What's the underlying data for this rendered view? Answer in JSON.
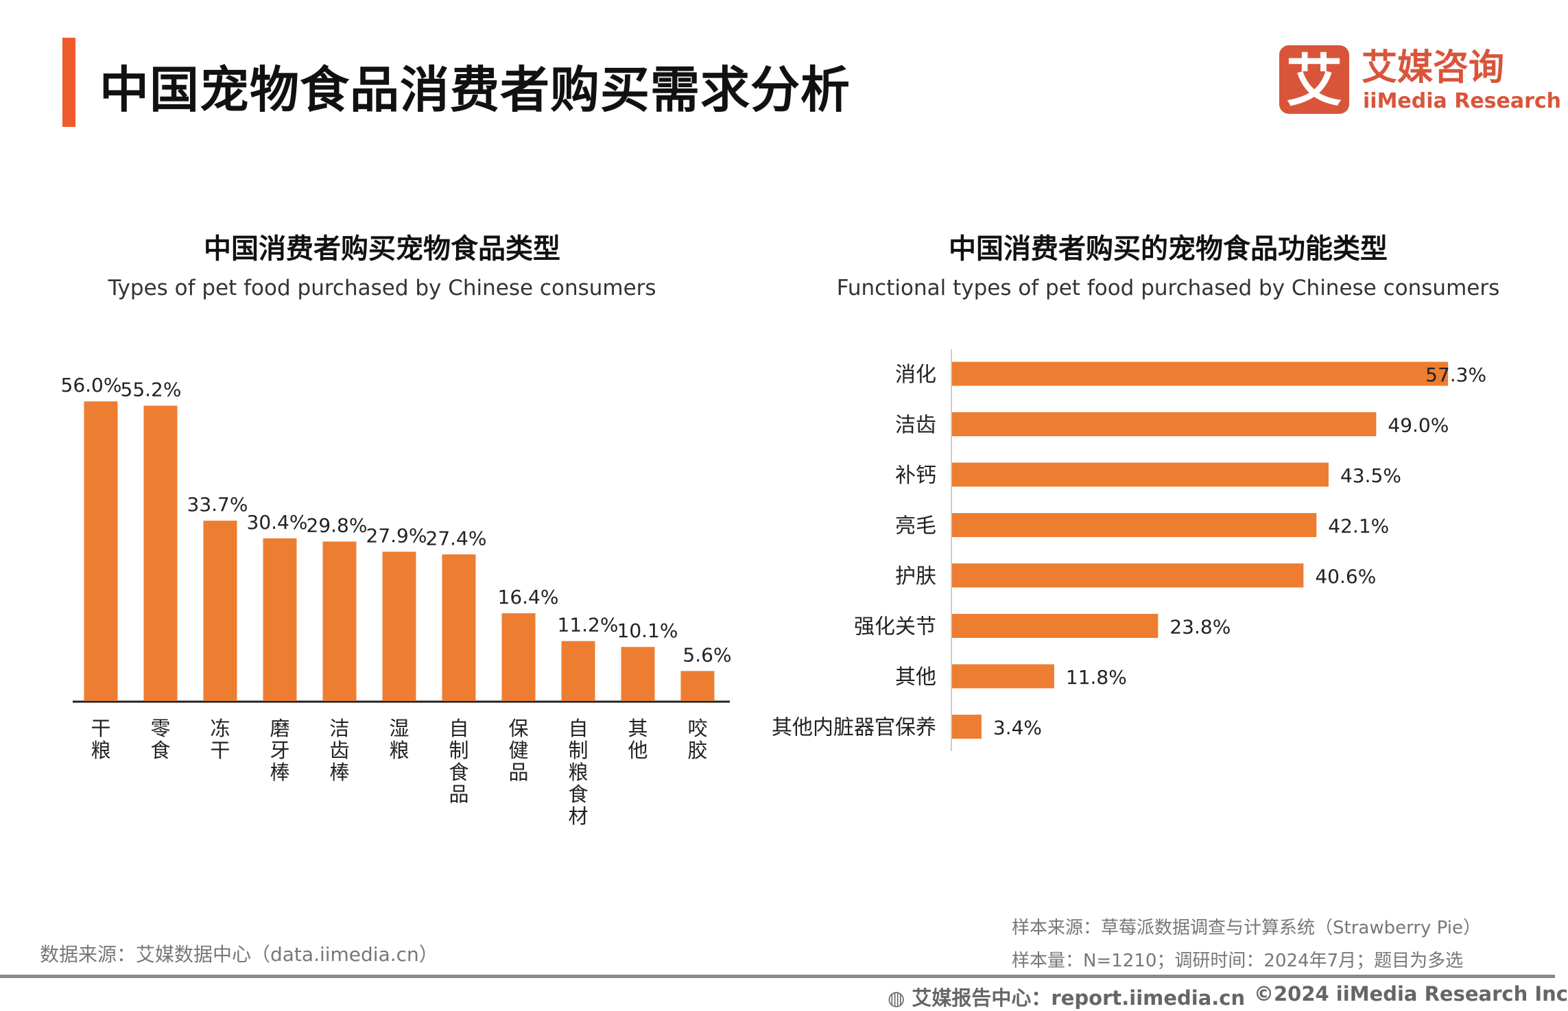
{
  "header": {
    "title": "中国宠物食品消费者购买需求分析",
    "accent_color": "#ee5a2c",
    "logo": {
      "mark": "艾",
      "cn": "艾媒咨询",
      "en": "iiMedia Research",
      "color": "#d9553a"
    }
  },
  "chart_data": [
    {
      "type": "bar",
      "orientation": "vertical",
      "title": "中国消费者购买宠物食品类型",
      "subtitle": "Types of pet food purchased by Chinese consumers",
      "categories": [
        "干粮",
        "零食",
        "冻干",
        "磨牙棒",
        "洁齿棒",
        "湿粮",
        "自制食品",
        "保健品",
        "自制粮食材",
        "其他",
        "咬胶"
      ],
      "values": [
        56.0,
        55.2,
        33.7,
        30.4,
        29.8,
        27.9,
        27.4,
        16.4,
        11.2,
        10.1,
        5.6
      ],
      "labels": [
        "56.0%",
        "55.2%",
        "33.7%",
        "30.4%",
        "29.8%",
        "27.9%",
        "27.4%",
        "16.4%",
        "11.2%",
        "10.1%",
        "5.6%"
      ],
      "unit": "%",
      "color": "#ed7d31",
      "grid": false
    },
    {
      "type": "bar",
      "orientation": "horizontal",
      "title": "中国消费者购买的宠物食品功能类型",
      "subtitle": "Functional types of pet food purchased by Chinese consumers",
      "categories": [
        "消化",
        "洁齿",
        "补钙",
        "亮毛",
        "护肤",
        "强化关节",
        "其他",
        "其他内脏器官保养"
      ],
      "values": [
        57.3,
        49.0,
        43.5,
        42.1,
        40.6,
        23.8,
        11.8,
        3.4
      ],
      "labels": [
        "57.3%",
        "49.0%",
        "43.5%",
        "42.1%",
        "40.6%",
        "23.8%",
        "11.8%",
        "3.4%"
      ],
      "unit": "%",
      "color": "#ed7d31",
      "grid": false
    }
  ],
  "footer": {
    "source": "数据来源：艾媒数据中心（data.iimedia.cn）",
    "sample_source": "样本来源：草莓派数据调查与计算系统（Strawberry Pie）",
    "sample_info": "样本量：N=1210；调研时间：2024年7月；题目为多选",
    "report_center": "艾媒报告中心：report.iimedia.cn",
    "copyright": "©2024  iiMedia Research  Inc"
  }
}
